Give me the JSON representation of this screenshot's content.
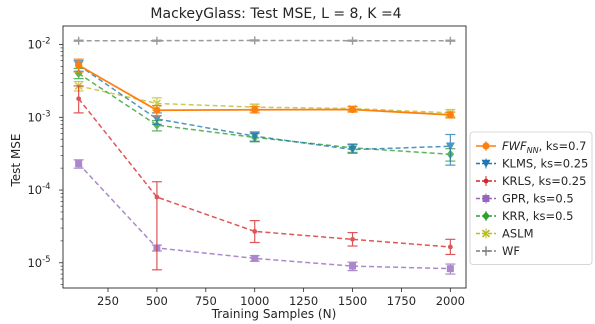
{
  "chart_data": {
    "type": "line",
    "title": "MackeyGlass: Test MSE, L = 8, K =4",
    "xlabel": "Training Samples (N)",
    "ylabel": "Test MSE",
    "x": [
      100,
      500,
      1000,
      1500,
      2000
    ],
    "xlim": [
      20,
      2080
    ],
    "x_ticks": [
      250,
      500,
      750,
      1000,
      1250,
      1500,
      1750,
      2000
    ],
    "y_scale": "log",
    "ylim": [
      4.5e-06,
      0.018
    ],
    "y_ticks": [
      {
        "value": 1e-05,
        "label": "10⁻⁵"
      },
      {
        "value": 0.0001,
        "label": "10⁻⁴"
      },
      {
        "value": 0.001,
        "label": "10⁻³"
      },
      {
        "value": 0.01,
        "label": "10⁻²"
      }
    ],
    "grid": false,
    "legend_position": "right-outside",
    "series": [
      {
        "key": "fwf",
        "name_main": "FWF",
        "name_sub": "NN",
        "name_rest": ", ks=0.7",
        "color": "#ff7f0e",
        "dash": false,
        "marker": "circle",
        "values": [
          0.0052,
          0.00125,
          0.00127,
          0.00128,
          0.00108
        ],
        "err_low": [
          0.0042,
          0.00105,
          0.00115,
          0.00118,
          0.00098
        ],
        "err_high": [
          0.0063,
          0.00145,
          0.0014,
          0.0014,
          0.00118
        ]
      },
      {
        "key": "klms",
        "name": "KLMS, ks=0.25",
        "color": "#1f77b4",
        "dash": true,
        "marker": "triangle-down",
        "values": [
          0.0052,
          0.00095,
          0.00055,
          0.00036,
          0.0004
        ],
        "err_low": [
          0.0043,
          0.0008,
          0.00047,
          0.00032,
          0.00022
        ],
        "err_high": [
          0.006,
          0.00115,
          0.00063,
          0.00042,
          0.00058
        ]
      },
      {
        "key": "krls",
        "name": "KRLS, ks=0.25",
        "color": "#d62728",
        "dash": true,
        "marker": "dot",
        "values": [
          0.0018,
          8e-05,
          2.7e-05,
          2.1e-05,
          1.65e-05
        ],
        "err_low": [
          0.00115,
          8e-06,
          1.9e-05,
          1.7e-05,
          1.3e-05
        ],
        "err_high": [
          0.0027,
          0.00013,
          3.8e-05,
          2.6e-05,
          2.1e-05
        ]
      },
      {
        "key": "gpr",
        "name": "GPR, ks=0.5",
        "color": "#9467bd",
        "dash": true,
        "marker": "square",
        "values": [
          0.00023,
          1.6e-05,
          1.15e-05,
          9e-06,
          8.3e-06
        ],
        "err_low": [
          0.0002,
          1.45e-05,
          1.05e-05,
          7.8e-06,
          7e-06
        ],
        "err_high": [
          0.00026,
          1.75e-05,
          1.25e-05,
          1.02e-05,
          9.6e-06
        ]
      },
      {
        "key": "krr",
        "name": "KRR, ks=0.5",
        "color": "#2ca02c",
        "dash": true,
        "marker": "diamond",
        "values": [
          0.004,
          0.00078,
          0.00053,
          0.00038,
          0.00031
        ],
        "err_low": [
          0.0034,
          0.00065,
          0.00046,
          0.00033,
          0.00025
        ],
        "err_high": [
          0.0047,
          0.0009,
          0.0006,
          0.00043,
          0.00037
        ]
      },
      {
        "key": "aslm",
        "name": "ASLM",
        "color": "#bcbd22",
        "dash": true,
        "marker": "x",
        "values": [
          0.0027,
          0.00155,
          0.00138,
          0.00132,
          0.00115
        ],
        "err_low": [
          0.0023,
          0.00125,
          0.00122,
          0.00122,
          0.00102
        ],
        "err_high": [
          0.0031,
          0.00185,
          0.00152,
          0.00142,
          0.00128
        ]
      },
      {
        "key": "wf",
        "name": "WF",
        "color": "#7f7f7f",
        "dash": true,
        "marker": "plus",
        "values": [
          0.0113,
          0.0113,
          0.0114,
          0.0113,
          0.0113
        ],
        "err_low": [
          0.0111,
          0.0111,
          0.0112,
          0.0111,
          0.0111
        ],
        "err_high": [
          0.0115,
          0.0115,
          0.0116,
          0.0115,
          0.0115
        ]
      }
    ]
  }
}
